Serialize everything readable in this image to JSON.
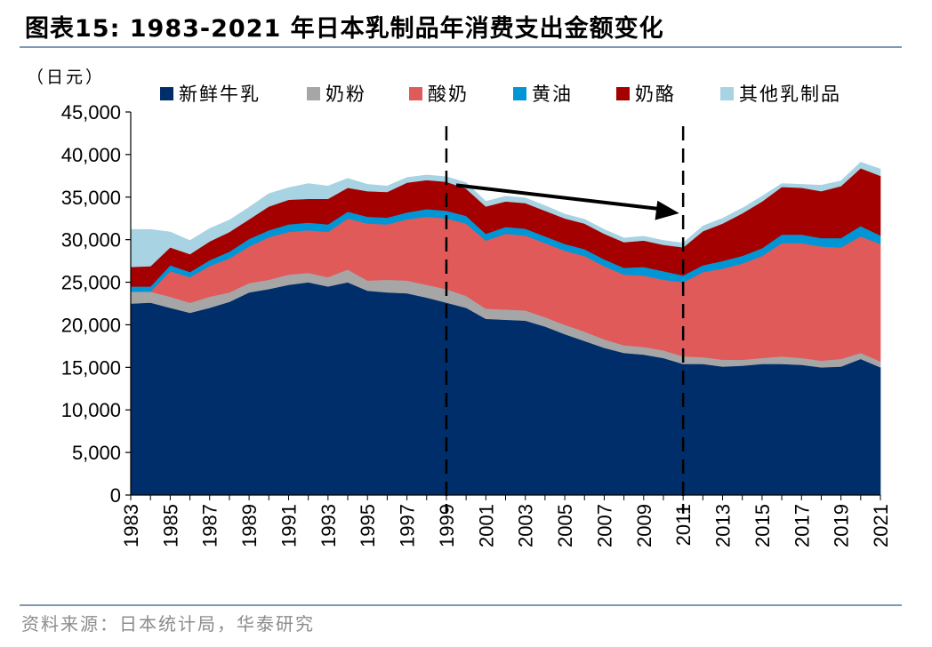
{
  "page": {
    "title": "图表15:   1983-2021 年日本乳制品年消费支出金额变化",
    "source": "资料来源：日本统计局，华泰研究"
  },
  "colors": {
    "fresh_milk": "#002e6b",
    "milk_powder": "#a6a6a6",
    "yogurt": "#e05a5a",
    "butter": "#0096d6",
    "cheese": "#a50000",
    "other": "#a7d3e2"
  },
  "chart_data": {
    "type": "area",
    "stacked": true,
    "unit_label": "（日元）",
    "x": [
      1983,
      1984,
      1985,
      1986,
      1987,
      1988,
      1989,
      1990,
      1991,
      1992,
      1993,
      1994,
      1995,
      1996,
      1997,
      1998,
      1999,
      2000,
      2001,
      2002,
      2003,
      2004,
      2005,
      2006,
      2007,
      2008,
      2009,
      2010,
      2011,
      2012,
      2013,
      2014,
      2015,
      2016,
      2017,
      2018,
      2019,
      2020,
      2021
    ],
    "x_tick_labels": [
      "1983",
      "1985",
      "1987",
      "1989",
      "1991",
      "1993",
      "1995",
      "1997",
      "1999",
      "2001",
      "2003",
      "2005",
      "2007",
      "2009",
      "2011",
      "2013",
      "2015",
      "2017",
      "2019",
      "2021"
    ],
    "ylim": [
      0,
      45000
    ],
    "y_ticks": [
      0,
      5000,
      10000,
      15000,
      20000,
      25000,
      30000,
      35000,
      40000,
      45000
    ],
    "y_tick_labels": [
      "0",
      "5,000",
      "10,000",
      "15,000",
      "20,000",
      "25,000",
      "30,000",
      "35,000",
      "40,000",
      "45,000"
    ],
    "series": [
      {
        "name": "新鲜牛乳",
        "color_key": "fresh_milk",
        "values": [
          22500,
          22600,
          22000,
          21400,
          22000,
          22700,
          23800,
          24200,
          24700,
          25000,
          24500,
          25000,
          24000,
          23800,
          23700,
          23200,
          22600,
          22000,
          20700,
          20600,
          20500,
          19800,
          18900,
          18100,
          17300,
          16700,
          16500,
          16100,
          15400,
          15400,
          15100,
          15200,
          15400,
          15400,
          15300,
          15000,
          15100,
          16000,
          15000
        ]
      },
      {
        "name": "奶粉",
        "color_key": "milk_powder",
        "values": [
          1400,
          1300,
          1300,
          1200,
          1300,
          1100,
          1100,
          1100,
          1200,
          1100,
          1100,
          1500,
          1200,
          1500,
          1500,
          1500,
          1600,
          1400,
          1200,
          1200,
          1200,
          1100,
          1100,
          1100,
          1000,
          900,
          900,
          900,
          900,
          800,
          800,
          700,
          700,
          900,
          800,
          800,
          900,
          700,
          700
        ]
      },
      {
        "name": "酸奶",
        "color_key": "yogurt",
        "values": [
          0,
          0,
          3000,
          3000,
          3600,
          4000,
          4300,
          5000,
          5000,
          5000,
          5300,
          6000,
          6700,
          6500,
          7200,
          8000,
          8300,
          8500,
          8000,
          8900,
          8800,
          8700,
          8700,
          8900,
          8600,
          8300,
          8400,
          8300,
          8700,
          10000,
          10700,
          11300,
          12000,
          13300,
          13500,
          13400,
          13100,
          13700,
          13800
        ]
      },
      {
        "name": "黄油",
        "color_key": "butter",
        "values": [
          600,
          600,
          700,
          600,
          700,
          800,
          900,
          800,
          900,
          900,
          900,
          800,
          800,
          800,
          800,
          900,
          900,
          900,
          800,
          800,
          800,
          800,
          800,
          800,
          800,
          800,
          1000,
          1000,
          800,
          800,
          900,
          900,
          900,
          1000,
          1000,
          1000,
          1100,
          1200,
          1000
        ]
      },
      {
        "name": "奶酪",
        "color_key": "cheese",
        "values": [
          2300,
          2400,
          2100,
          2100,
          2200,
          2300,
          2300,
          2800,
          2900,
          2800,
          3000,
          2800,
          3000,
          3000,
          3500,
          3400,
          3400,
          3200,
          3200,
          3000,
          3000,
          3000,
          3000,
          3000,
          3000,
          3000,
          3100,
          3100,
          3300,
          4000,
          4400,
          5000,
          5500,
          5600,
          5500,
          5500,
          6100,
          6800,
          7000
        ]
      },
      {
        "name": "其他乳制品",
        "color_key": "other",
        "values": [
          4400,
          4300,
          1800,
          1600,
          1500,
          1400,
          1400,
          1500,
          1400,
          1800,
          1500,
          1100,
          800,
          700,
          600,
          600,
          600,
          700,
          600,
          600,
          600,
          600,
          500,
          500,
          500,
          500,
          500,
          500,
          500,
          600,
          600,
          600,
          600,
          400,
          400,
          700,
          600,
          700,
          800
        ]
      }
    ],
    "reference_lines": [
      {
        "x": 1999,
        "style": "dashed"
      },
      {
        "x": 2011,
        "style": "dashed"
      }
    ],
    "annotations": [
      {
        "type": "arrow",
        "from": [
          1999.5,
          36400
        ],
        "to": [
          2010.8,
          33100
        ]
      }
    ],
    "legend_position": "top"
  }
}
